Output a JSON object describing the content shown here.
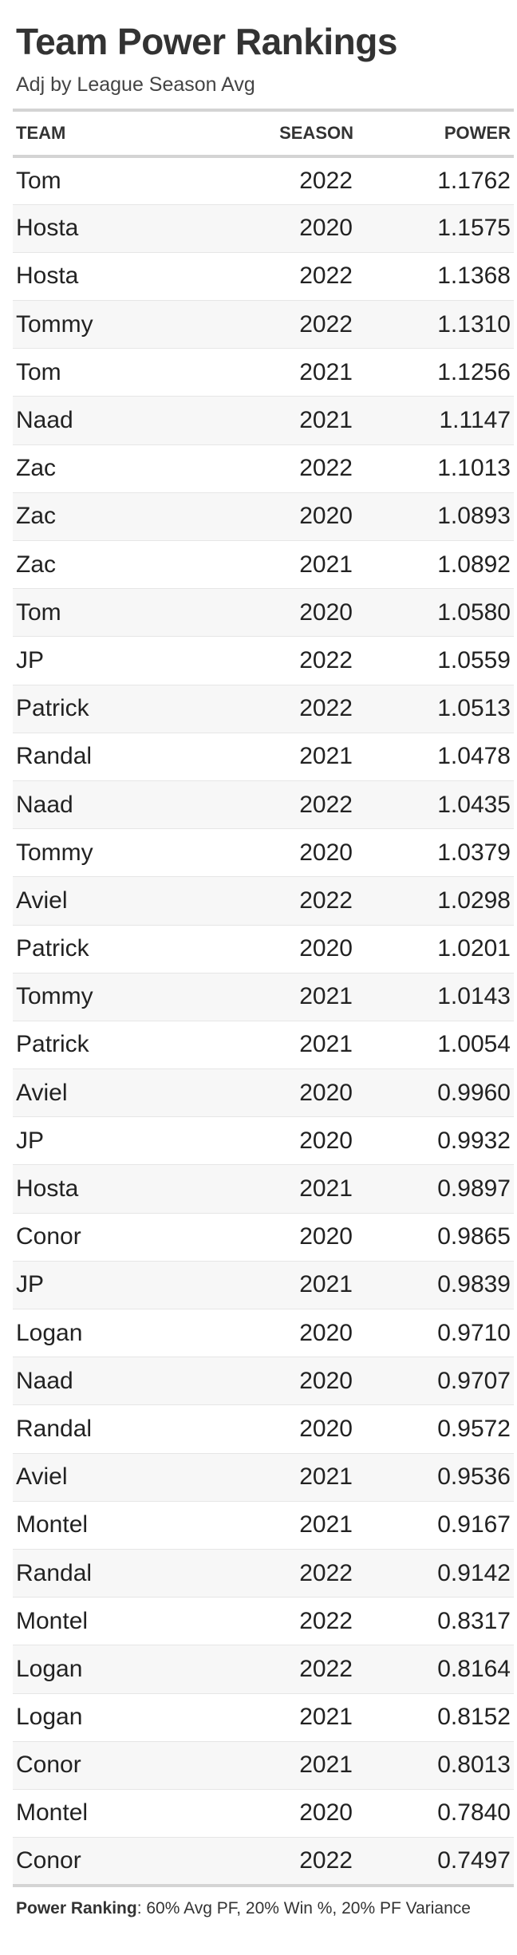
{
  "title": "Team Power Rankings",
  "subtitle": "Adj by League Season Avg",
  "columns": {
    "team": "TEAM",
    "season": "SEASON",
    "power": "POWER"
  },
  "footnote": {
    "label": "Power Ranking",
    "text": ": 60% Avg PF, 20% Win %, 20% PF Variance"
  },
  "chart_data": {
    "type": "table",
    "title": "Team Power Rankings",
    "subtitle": "Adj by League Season Avg",
    "columns": [
      "TEAM",
      "SEASON",
      "POWER"
    ],
    "rows": [
      {
        "team": "Tom",
        "season": "2022",
        "power": "1.1762"
      },
      {
        "team": "Hosta",
        "season": "2020",
        "power": "1.1575"
      },
      {
        "team": "Hosta",
        "season": "2022",
        "power": "1.1368"
      },
      {
        "team": "Tommy",
        "season": "2022",
        "power": "1.1310"
      },
      {
        "team": "Tom",
        "season": "2021",
        "power": "1.1256"
      },
      {
        "team": "Naad",
        "season": "2021",
        "power": "1.1147"
      },
      {
        "team": "Zac",
        "season": "2022",
        "power": "1.1013"
      },
      {
        "team": "Zac",
        "season": "2020",
        "power": "1.0893"
      },
      {
        "team": "Zac",
        "season": "2021",
        "power": "1.0892"
      },
      {
        "team": "Tom",
        "season": "2020",
        "power": "1.0580"
      },
      {
        "team": "JP",
        "season": "2022",
        "power": "1.0559"
      },
      {
        "team": "Patrick",
        "season": "2022",
        "power": "1.0513"
      },
      {
        "team": "Randal",
        "season": "2021",
        "power": "1.0478"
      },
      {
        "team": "Naad",
        "season": "2022",
        "power": "1.0435"
      },
      {
        "team": "Tommy",
        "season": "2020",
        "power": "1.0379"
      },
      {
        "team": "Aviel",
        "season": "2022",
        "power": "1.0298"
      },
      {
        "team": "Patrick",
        "season": "2020",
        "power": "1.0201"
      },
      {
        "team": "Tommy",
        "season": "2021",
        "power": "1.0143"
      },
      {
        "team": "Patrick",
        "season": "2021",
        "power": "1.0054"
      },
      {
        "team": "Aviel",
        "season": "2020",
        "power": "0.9960"
      },
      {
        "team": "JP",
        "season": "2020",
        "power": "0.9932"
      },
      {
        "team": "Hosta",
        "season": "2021",
        "power": "0.9897"
      },
      {
        "team": "Conor",
        "season": "2020",
        "power": "0.9865"
      },
      {
        "team": "JP",
        "season": "2021",
        "power": "0.9839"
      },
      {
        "team": "Logan",
        "season": "2020",
        "power": "0.9710"
      },
      {
        "team": "Naad",
        "season": "2020",
        "power": "0.9707"
      },
      {
        "team": "Randal",
        "season": "2020",
        "power": "0.9572"
      },
      {
        "team": "Aviel",
        "season": "2021",
        "power": "0.9536"
      },
      {
        "team": "Montel",
        "season": "2021",
        "power": "0.9167"
      },
      {
        "team": "Randal",
        "season": "2022",
        "power": "0.9142"
      },
      {
        "team": "Montel",
        "season": "2022",
        "power": "0.8317"
      },
      {
        "team": "Logan",
        "season": "2022",
        "power": "0.8164"
      },
      {
        "team": "Logan",
        "season": "2021",
        "power": "0.8152"
      },
      {
        "team": "Conor",
        "season": "2021",
        "power": "0.8013"
      },
      {
        "team": "Montel",
        "season": "2020",
        "power": "0.7840"
      },
      {
        "team": "Conor",
        "season": "2022",
        "power": "0.7497"
      }
    ]
  }
}
